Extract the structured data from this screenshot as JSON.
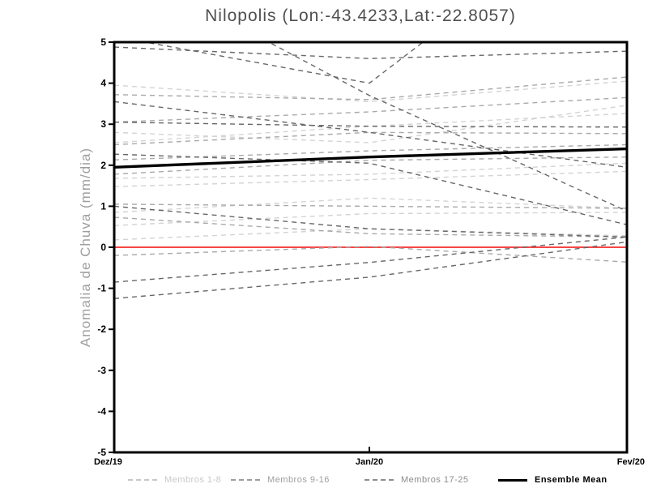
{
  "title": "Nilopolis (Lon:-43.4233,Lat:-22.8057)",
  "chart_data": {
    "type": "line",
    "title": "Nilopolis (Lon:-43.4233,Lat:-22.8057)",
    "xlabel": "",
    "ylabel": "Anomalia de Chuva (mm/dia)",
    "x_categories": [
      "Dez/19",
      "Jan/20",
      "Fev/20"
    ],
    "ylim": [
      -5,
      5
    ],
    "yticks": [
      5,
      4,
      3,
      2,
      1,
      0,
      -1,
      -2,
      -3,
      -4,
      -5
    ],
    "grid": false,
    "line_style": "dashed members, solid ensemble mean, solid red zero line",
    "zero_line": {
      "value": 0,
      "color": "#f84545"
    },
    "groups": [
      {
        "name": "Membros 1-8",
        "color": "#d3d3d3"
      },
      {
        "name": "Membros 9-16",
        "color": "#a9a9a9"
      },
      {
        "name": "Membros 17-25",
        "color": "#676767"
      }
    ],
    "series": [
      {
        "group": 0,
        "name": "member",
        "values": [
          3.95,
          3.55,
          4.05
        ]
      },
      {
        "group": 0,
        "name": "member",
        "values": [
          2.8,
          2.55,
          3.46
        ]
      },
      {
        "group": 0,
        "name": "member",
        "values": [
          2.55,
          2.95,
          3.26
        ]
      },
      {
        "group": 0,
        "name": "member",
        "values": [
          1.68,
          1.78,
          2.05
        ]
      },
      {
        "group": 0,
        "name": "member",
        "values": [
          1.48,
          1.65,
          1.85
        ]
      },
      {
        "group": 0,
        "name": "member",
        "values": [
          0.85,
          1.2,
          0.95
        ]
      },
      {
        "group": 0,
        "name": "member",
        "values": [
          0.53,
          0.82,
          0.85
        ]
      },
      {
        "group": 0,
        "name": "member",
        "values": [
          0.18,
          0.45,
          0.28
        ]
      },
      {
        "group": 1,
        "name": "member",
        "values": [
          3.72,
          3.6,
          4.15
        ]
      },
      {
        "group": 1,
        "name": "member",
        "values": [
          3.05,
          3.3,
          3.65
        ]
      },
      {
        "group": 1,
        "name": "member",
        "values": [
          2.5,
          2.8,
          2.77
        ]
      },
      {
        "group": 1,
        "name": "member",
        "values": [
          2.13,
          2.35,
          2.5
        ]
      },
      {
        "group": 1,
        "name": "member",
        "values": [
          1.78,
          2.12,
          2.2
        ]
      },
      {
        "group": 1,
        "name": "member",
        "values": [
          1.05,
          1.0,
          0.95
        ]
      },
      {
        "group": 1,
        "name": "member",
        "values": [
          0.73,
          0.33,
          0.25
        ]
      },
      {
        "group": 1,
        "name": "member",
        "values": [
          -0.2,
          0.02,
          -0.36
        ]
      },
      {
        "group": 2,
        "name": "member",
        "values": [
          5.14,
          4.0,
          8.8
        ]
      },
      {
        "group": 2,
        "name": "member",
        "values": [
          4.88,
          4.6,
          4.78
        ]
      },
      {
        "group": 2,
        "name": "member",
        "values": [
          7.0,
          3.7,
          0.88
        ]
      },
      {
        "group": 2,
        "name": "member",
        "values": [
          3.55,
          2.8,
          1.95
        ]
      },
      {
        "group": 2,
        "name": "member",
        "values": [
          3.05,
          2.95,
          2.93
        ]
      },
      {
        "group": 2,
        "name": "member",
        "values": [
          2.27,
          2.05,
          0.55
        ]
      },
      {
        "group": 2,
        "name": "member",
        "values": [
          1.0,
          0.45,
          0.25
        ]
      },
      {
        "group": 2,
        "name": "member",
        "values": [
          -0.85,
          -0.37,
          0.25
        ]
      },
      {
        "group": 2,
        "name": "member",
        "values": [
          -1.25,
          -0.73,
          0.13
        ]
      }
    ],
    "ensemble_mean": {
      "name": "Ensemble Mean",
      "color": "#000000",
      "values": [
        1.95,
        2.2,
        2.4
      ]
    }
  },
  "legend": {
    "items": [
      {
        "label": "Membros 1-8",
        "color": "#c8c8c8",
        "style": "dashed"
      },
      {
        "label": "Membros 9-16",
        "color": "#9e9e9e",
        "style": "dashed"
      },
      {
        "label": "Membros 17-25",
        "color": "#8d8d8d",
        "style": "dashed"
      },
      {
        "label": "Ensemble Mean",
        "color": "#000000",
        "style": "solid"
      }
    ]
  }
}
